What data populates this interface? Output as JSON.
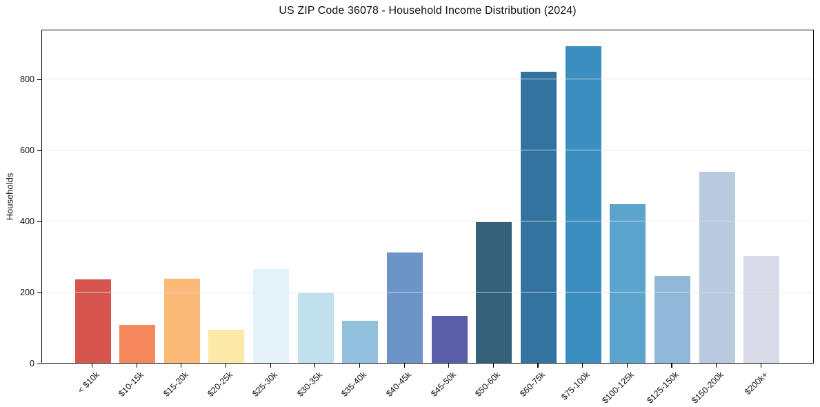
{
  "chart_data": {
    "type": "bar",
    "title": "US ZIP Code 36078 - Household Income Distribution (2024)",
    "xlabel": "",
    "ylabel": "Households",
    "categories": [
      "< $10k",
      "$10-15k",
      "$15-20k",
      "$20-25k",
      "$25-30k",
      "$30-35k",
      "$35-40k",
      "$40-45k",
      "$45-50k",
      "$50-60k",
      "$60-75k",
      "$75-100k",
      "$100-125k",
      "$125-150k",
      "$150-200k",
      "$200k+"
    ],
    "values": [
      236,
      108,
      238,
      93,
      264,
      197,
      119,
      312,
      132,
      397,
      820,
      893,
      447,
      246,
      538,
      301
    ],
    "bar_colors": [
      "#d6564f",
      "#f5875f",
      "#fbba77",
      "#fce9a8",
      "#e4f2f8",
      "#c1e1ee",
      "#93c0dd",
      "#6c94c6",
      "#5a5ea9",
      "#35607a",
      "#32749f",
      "#3a8ec0",
      "#5ca4cd",
      "#90b9d9",
      "#b9cade",
      "#d8dae8"
    ],
    "yticks": [
      0,
      200,
      400,
      600,
      800
    ],
    "ylim": [
      0,
      941
    ],
    "grid": "horizontal",
    "gridline_color": "rgba(228,228,228,0.85)",
    "background_color": "#ffffff",
    "spine_color": "#000000",
    "legend": "none"
  }
}
